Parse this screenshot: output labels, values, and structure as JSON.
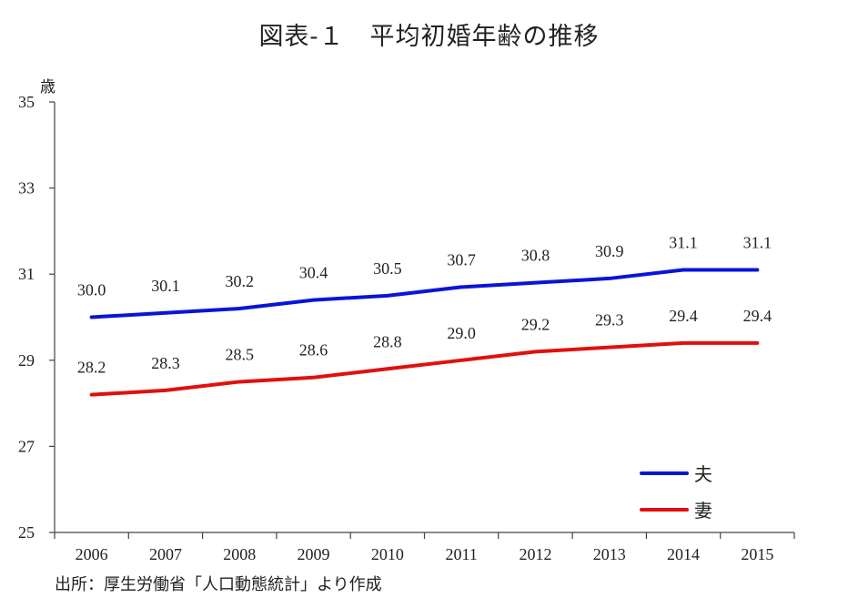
{
  "title": "図表‐１　平均初婚年齢の推移",
  "source": "出所：厚生労働省「人口動態統計」より作成",
  "chart_data": {
    "type": "line",
    "title": "図表‐１　平均初婚年齢の推移",
    "ylabel": "歳",
    "xlabel": "",
    "categories": [
      "2006",
      "2007",
      "2008",
      "2009",
      "2010",
      "2011",
      "2012",
      "2013",
      "2014",
      "2015"
    ],
    "ylim": [
      25,
      35
    ],
    "yticks": [
      "25",
      "27",
      "29",
      "31",
      "33",
      "35"
    ],
    "grid": false,
    "legend_position": "bottom-right",
    "series": [
      {
        "name": "夫",
        "color": "#0a14d8",
        "values": [
          30.0,
          30.1,
          30.2,
          30.4,
          30.5,
          30.7,
          30.8,
          30.9,
          31.1,
          31.1
        ],
        "labels": [
          "30.0",
          "30.1",
          "30.2",
          "30.4",
          "30.5",
          "30.7",
          "30.8",
          "30.9",
          "31.1",
          "31.1"
        ]
      },
      {
        "name": "妻",
        "color": "#e01010",
        "values": [
          28.2,
          28.3,
          28.5,
          28.6,
          28.8,
          29.0,
          29.2,
          29.3,
          29.4,
          29.4
        ],
        "labels": [
          "28.2",
          "28.3",
          "28.5",
          "28.6",
          "28.8",
          "29.0",
          "29.2",
          "29.3",
          "29.4",
          "29.4"
        ]
      }
    ]
  }
}
